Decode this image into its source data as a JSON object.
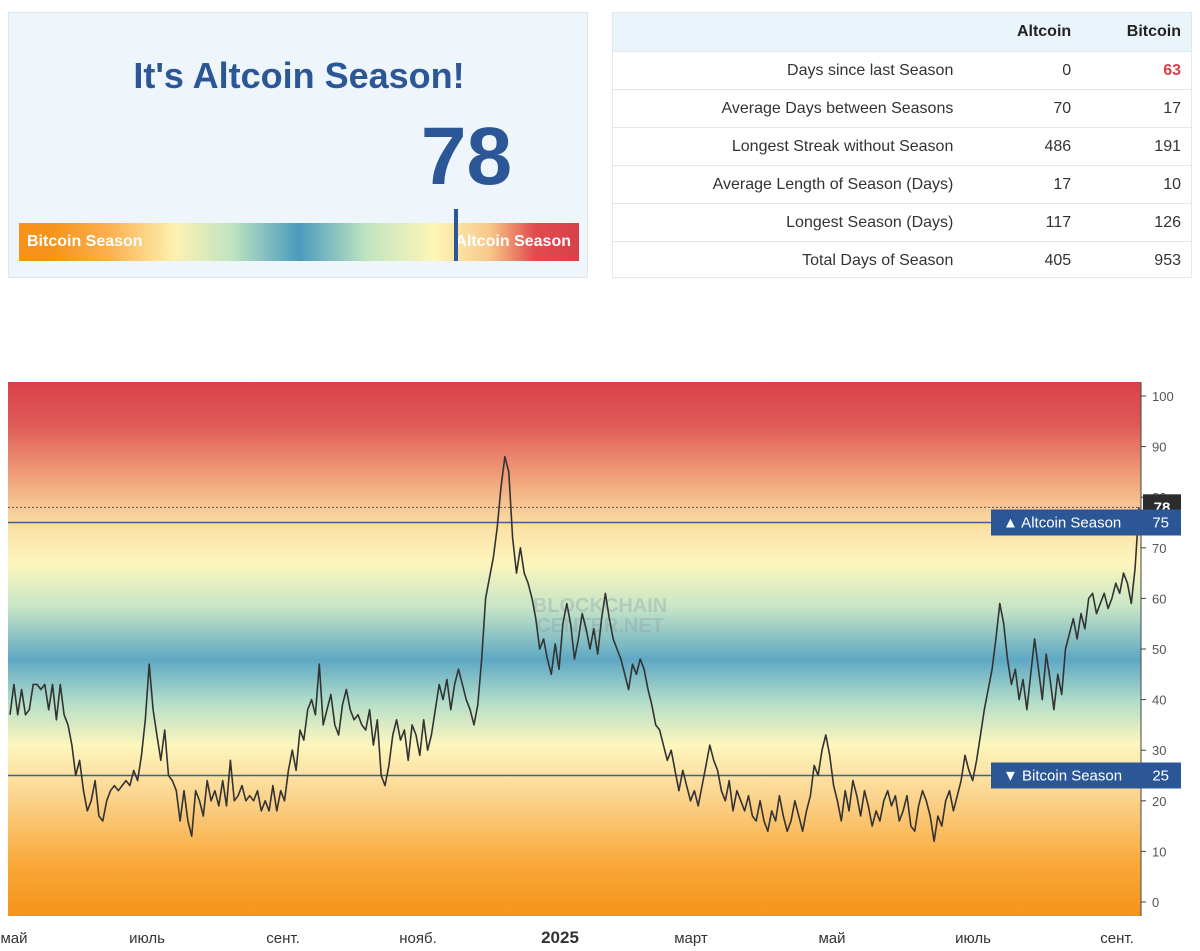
{
  "gauge": {
    "title": "It's Altcoin Season!",
    "value": "78",
    "value_num": 78,
    "left_label": "Bitcoin Season",
    "right_label": "Altcoin Season"
  },
  "stats": {
    "headers": [
      "",
      "Altcoin",
      "Bitcoin"
    ],
    "rows": [
      {
        "label": "Days since last Season",
        "altcoin": "0",
        "bitcoin": "63",
        "bitcoin_highlight": true
      },
      {
        "label": "Average Days between Seasons",
        "altcoin": "70",
        "bitcoin": "17"
      },
      {
        "label": "Longest Streak without Season",
        "altcoin": "486",
        "bitcoin": "191"
      },
      {
        "label": "Average Length of Season (Days)",
        "altcoin": "17",
        "bitcoin": "10"
      },
      {
        "label": "Longest Season (Days)",
        "altcoin": "117",
        "bitcoin": "126"
      },
      {
        "label": "Total Days of Season",
        "altcoin": "405",
        "bitcoin": "953"
      }
    ]
  },
  "colors": {
    "accent": "#2b5797",
    "red": "#d9404a",
    "orange": "#f7931a",
    "line": "#333333"
  },
  "chart_data": {
    "type": "line",
    "watermark": [
      "BLOCKCHAIN",
      "CENTER.NET"
    ],
    "ylim": [
      0,
      100
    ],
    "yticks": [
      0,
      10,
      20,
      30,
      40,
      50,
      60,
      70,
      80,
      90,
      100
    ],
    "xlabels": [
      {
        "label": "май",
        "bold": false
      },
      {
        "label": "июль",
        "bold": false
      },
      {
        "label": "сент.",
        "bold": false
      },
      {
        "label": "нояб.",
        "bold": false
      },
      {
        "label": "2025",
        "bold": true
      },
      {
        "label": "март",
        "bold": false
      },
      {
        "label": "май",
        "bold": false
      },
      {
        "label": "июль",
        "bold": false
      },
      {
        "label": "сент.",
        "bold": false
      }
    ],
    "x_start": "2024-05-01",
    "x_end": "2025-09-14",
    "current_value": 78,
    "thresholds": [
      {
        "label": "▲ Altcoin Season",
        "value": 75
      },
      {
        "label": "▼ Bitcoin Season",
        "value": 25
      }
    ],
    "series": [
      {
        "values": [
          [
            0,
            37
          ],
          [
            2,
            43
          ],
          [
            4,
            37
          ],
          [
            6,
            42
          ],
          [
            8,
            37
          ],
          [
            10,
            38
          ],
          [
            12,
            43
          ],
          [
            14,
            43
          ],
          [
            16,
            42
          ],
          [
            18,
            43
          ],
          [
            20,
            38
          ],
          [
            22,
            43
          ],
          [
            24,
            36
          ],
          [
            26,
            43
          ],
          [
            28,
            37
          ],
          [
            30,
            35
          ],
          [
            32,
            31
          ],
          [
            34,
            25
          ],
          [
            36,
            28
          ],
          [
            38,
            22
          ],
          [
            40,
            18
          ],
          [
            42,
            20
          ],
          [
            44,
            24
          ],
          [
            46,
            17
          ],
          [
            48,
            16
          ],
          [
            50,
            20
          ],
          [
            52,
            22
          ],
          [
            54,
            23
          ],
          [
            56,
            22
          ],
          [
            58,
            23
          ],
          [
            60,
            24
          ],
          [
            62,
            23
          ],
          [
            64,
            26
          ],
          [
            66,
            24
          ],
          [
            68,
            29
          ],
          [
            70,
            36
          ],
          [
            72,
            47
          ],
          [
            74,
            38
          ],
          [
            76,
            33
          ],
          [
            78,
            28
          ],
          [
            80,
            34
          ],
          [
            82,
            25
          ],
          [
            84,
            24
          ],
          [
            86,
            22
          ],
          [
            88,
            16
          ],
          [
            90,
            22
          ],
          [
            92,
            16
          ],
          [
            94,
            13
          ],
          [
            96,
            22
          ],
          [
            98,
            20
          ],
          [
            100,
            17
          ],
          [
            102,
            24
          ],
          [
            104,
            20
          ],
          [
            106,
            22
          ],
          [
            108,
            19
          ],
          [
            110,
            24
          ],
          [
            112,
            19
          ],
          [
            114,
            28
          ],
          [
            116,
            20
          ],
          [
            118,
            21
          ],
          [
            120,
            23
          ],
          [
            122,
            20
          ],
          [
            124,
            21
          ],
          [
            126,
            20
          ],
          [
            128,
            22
          ],
          [
            130,
            18
          ],
          [
            132,
            20
          ],
          [
            134,
            18
          ],
          [
            136,
            23
          ],
          [
            138,
            18
          ],
          [
            140,
            22
          ],
          [
            142,
            20
          ],
          [
            144,
            26
          ],
          [
            146,
            30
          ],
          [
            148,
            26
          ],
          [
            150,
            34
          ],
          [
            152,
            32
          ],
          [
            154,
            38
          ],
          [
            156,
            40
          ],
          [
            158,
            37
          ],
          [
            160,
            47
          ],
          [
            162,
            35
          ],
          [
            164,
            38
          ],
          [
            166,
            41
          ],
          [
            168,
            35
          ],
          [
            170,
            33
          ],
          [
            172,
            39
          ],
          [
            174,
            42
          ],
          [
            176,
            38
          ],
          [
            178,
            36
          ],
          [
            180,
            37
          ],
          [
            182,
            35
          ],
          [
            184,
            34
          ],
          [
            186,
            38
          ],
          [
            188,
            31
          ],
          [
            190,
            36
          ],
          [
            192,
            25
          ],
          [
            194,
            23
          ],
          [
            196,
            27
          ],
          [
            198,
            33
          ],
          [
            200,
            36
          ],
          [
            202,
            32
          ],
          [
            204,
            34
          ],
          [
            206,
            28
          ],
          [
            208,
            35
          ],
          [
            210,
            33
          ],
          [
            212,
            29
          ],
          [
            214,
            36
          ],
          [
            216,
            30
          ],
          [
            218,
            33
          ],
          [
            220,
            38
          ],
          [
            222,
            43
          ],
          [
            224,
            40
          ],
          [
            226,
            44
          ],
          [
            228,
            38
          ],
          [
            230,
            43
          ],
          [
            232,
            46
          ],
          [
            234,
            43
          ],
          [
            236,
            40
          ],
          [
            238,
            38
          ],
          [
            240,
            35
          ],
          [
            242,
            39
          ],
          [
            244,
            48
          ],
          [
            246,
            60
          ],
          [
            248,
            64
          ],
          [
            250,
            68
          ],
          [
            252,
            74
          ],
          [
            254,
            82
          ],
          [
            256,
            88
          ],
          [
            258,
            85
          ],
          [
            260,
            72
          ],
          [
            262,
            65
          ],
          [
            264,
            70
          ],
          [
            266,
            65
          ],
          [
            268,
            63
          ],
          [
            270,
            60
          ],
          [
            272,
            56
          ],
          [
            274,
            50
          ],
          [
            276,
            52
          ],
          [
            278,
            48
          ],
          [
            280,
            45
          ],
          [
            282,
            51
          ],
          [
            284,
            46
          ],
          [
            286,
            55
          ],
          [
            288,
            59
          ],
          [
            290,
            55
          ],
          [
            292,
            48
          ],
          [
            294,
            52
          ],
          [
            296,
            57
          ],
          [
            298,
            54
          ],
          [
            300,
            50
          ],
          [
            302,
            54
          ],
          [
            304,
            49
          ],
          [
            306,
            56
          ],
          [
            308,
            61
          ],
          [
            310,
            56
          ],
          [
            312,
            52
          ],
          [
            314,
            50
          ],
          [
            316,
            48
          ],
          [
            318,
            45
          ],
          [
            320,
            42
          ],
          [
            322,
            47
          ],
          [
            324,
            45
          ],
          [
            326,
            48
          ],
          [
            328,
            46
          ],
          [
            330,
            42
          ],
          [
            332,
            39
          ],
          [
            334,
            35
          ],
          [
            336,
            34
          ],
          [
            338,
            31
          ],
          [
            340,
            28
          ],
          [
            342,
            30
          ],
          [
            344,
            26
          ],
          [
            346,
            22
          ],
          [
            348,
            26
          ],
          [
            350,
            23
          ],
          [
            352,
            20
          ],
          [
            354,
            22
          ],
          [
            356,
            19
          ],
          [
            358,
            23
          ],
          [
            360,
            27
          ],
          [
            362,
            31
          ],
          [
            364,
            28
          ],
          [
            366,
            26
          ],
          [
            368,
            22
          ],
          [
            370,
            20
          ],
          [
            372,
            24
          ],
          [
            374,
            18
          ],
          [
            376,
            22
          ],
          [
            378,
            20
          ],
          [
            380,
            18
          ],
          [
            382,
            21
          ],
          [
            384,
            17
          ],
          [
            386,
            16
          ],
          [
            388,
            20
          ],
          [
            390,
            16
          ],
          [
            392,
            14
          ],
          [
            394,
            18
          ],
          [
            396,
            16
          ],
          [
            398,
            21
          ],
          [
            400,
            17
          ],
          [
            402,
            14
          ],
          [
            404,
            16
          ],
          [
            406,
            20
          ],
          [
            408,
            17
          ],
          [
            410,
            14
          ],
          [
            412,
            18
          ],
          [
            414,
            21
          ],
          [
            416,
            27
          ],
          [
            418,
            25
          ],
          [
            420,
            30
          ],
          [
            422,
            33
          ],
          [
            424,
            29
          ],
          [
            426,
            23
          ],
          [
            428,
            20
          ],
          [
            430,
            16
          ],
          [
            432,
            22
          ],
          [
            434,
            18
          ],
          [
            436,
            24
          ],
          [
            438,
            21
          ],
          [
            440,
            17
          ],
          [
            442,
            22
          ],
          [
            444,
            19
          ],
          [
            446,
            15
          ],
          [
            448,
            18
          ],
          [
            450,
            16
          ],
          [
            452,
            20
          ],
          [
            454,
            22
          ],
          [
            456,
            19
          ],
          [
            458,
            21
          ],
          [
            460,
            16
          ],
          [
            462,
            18
          ],
          [
            464,
            21
          ],
          [
            466,
            15
          ],
          [
            468,
            14
          ],
          [
            470,
            19
          ],
          [
            472,
            22
          ],
          [
            474,
            20
          ],
          [
            476,
            17
          ],
          [
            478,
            12
          ],
          [
            480,
            17
          ],
          [
            482,
            15
          ],
          [
            484,
            20
          ],
          [
            486,
            22
          ],
          [
            488,
            18
          ],
          [
            490,
            21
          ],
          [
            492,
            24
          ],
          [
            494,
            29
          ],
          [
            496,
            26
          ],
          [
            498,
            24
          ],
          [
            500,
            28
          ],
          [
            502,
            33
          ],
          [
            504,
            38
          ],
          [
            506,
            42
          ],
          [
            508,
            46
          ],
          [
            510,
            52
          ],
          [
            512,
            59
          ],
          [
            514,
            55
          ],
          [
            516,
            48
          ],
          [
            518,
            43
          ],
          [
            520,
            46
          ],
          [
            522,
            40
          ],
          [
            524,
            44
          ],
          [
            526,
            38
          ],
          [
            528,
            45
          ],
          [
            530,
            52
          ],
          [
            532,
            46
          ],
          [
            534,
            40
          ],
          [
            536,
            49
          ],
          [
            538,
            44
          ],
          [
            540,
            38
          ],
          [
            542,
            45
          ],
          [
            544,
            41
          ],
          [
            546,
            50
          ],
          [
            548,
            53
          ],
          [
            550,
            56
          ],
          [
            552,
            52
          ],
          [
            554,
            57
          ],
          [
            556,
            54
          ],
          [
            558,
            60
          ],
          [
            560,
            61
          ],
          [
            562,
            57
          ],
          [
            564,
            59
          ],
          [
            566,
            61
          ],
          [
            568,
            58
          ],
          [
            570,
            60
          ],
          [
            572,
            63
          ],
          [
            574,
            61
          ],
          [
            576,
            65
          ],
          [
            578,
            63
          ],
          [
            580,
            59
          ],
          [
            582,
            66
          ],
          [
            584,
            78
          ]
        ]
      }
    ]
  }
}
